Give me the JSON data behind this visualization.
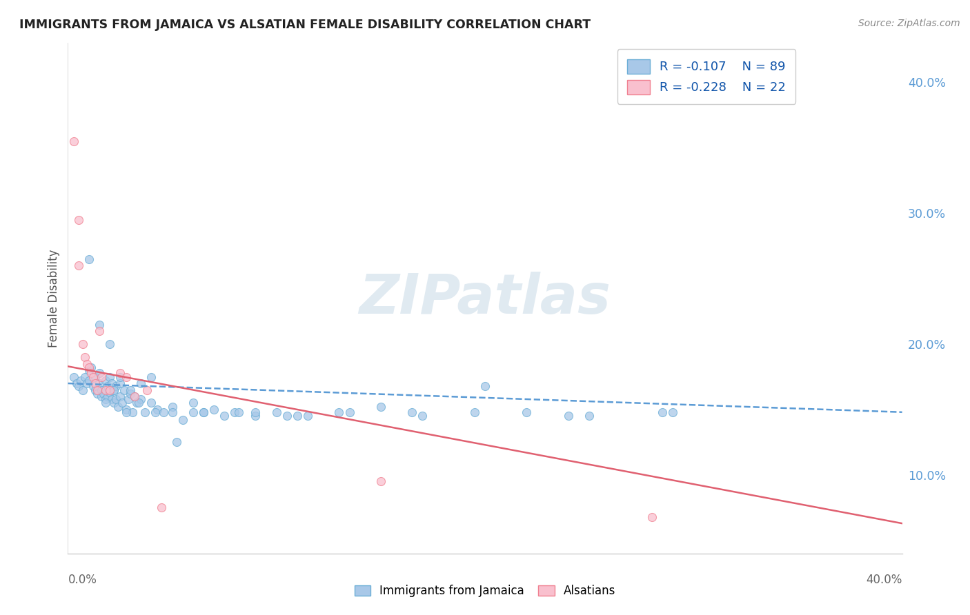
{
  "title": "IMMIGRANTS FROM JAMAICA VS ALSATIAN FEMALE DISABILITY CORRELATION CHART",
  "source": "Source: ZipAtlas.com",
  "ylabel": "Female Disability",
  "watermark": "ZIPatlas",
  "xlim": [
    0.0,
    0.4
  ],
  "ylim": [
    0.04,
    0.43
  ],
  "ytick_vals": [
    0.1,
    0.2,
    0.3,
    0.4
  ],
  "ytick_labels": [
    "10.0%",
    "20.0%",
    "30.0%",
    "40.0%"
  ],
  "xtick_labels": [
    "0.0%",
    "40.0%"
  ],
  "blue_R": -0.107,
  "blue_N": 89,
  "pink_R": -0.228,
  "pink_N": 22,
  "legend_label_blue": "Immigrants from Jamaica",
  "legend_label_pink": "Alsatians",
  "blue_scatter_color": "#a8c8e8",
  "blue_edge_color": "#6baed6",
  "pink_scatter_color": "#f9c0ce",
  "pink_edge_color": "#f08090",
  "blue_line_color": "#5b9bd5",
  "pink_line_color": "#e06070",
  "background_color": "#ffffff",
  "grid_color": "#d0dde8",
  "watermark_color": "#ccdce8",
  "title_color": "#222222",
  "source_color": "#888888",
  "ylabel_color": "#555555",
  "tick_label_color": "#5b9bd5",
  "legend_text_color_R": "#cc2244",
  "legend_text_color_N": "#1155aa",
  "blue_scatter_x": [
    0.003,
    0.004,
    0.005,
    0.006,
    0.007,
    0.008,
    0.009,
    0.01,
    0.01,
    0.011,
    0.012,
    0.013,
    0.013,
    0.014,
    0.015,
    0.015,
    0.016,
    0.016,
    0.017,
    0.018,
    0.018,
    0.019,
    0.019,
    0.02,
    0.02,
    0.021,
    0.021,
    0.022,
    0.022,
    0.023,
    0.023,
    0.024,
    0.025,
    0.025,
    0.026,
    0.027,
    0.028,
    0.029,
    0.03,
    0.031,
    0.032,
    0.033,
    0.035,
    0.037,
    0.04,
    0.043,
    0.046,
    0.05,
    0.055,
    0.06,
    0.065,
    0.07,
    0.08,
    0.09,
    0.1,
    0.115,
    0.13,
    0.15,
    0.17,
    0.195,
    0.22,
    0.25,
    0.285,
    0.01,
    0.015,
    0.02,
    0.025,
    0.03,
    0.035,
    0.04,
    0.05,
    0.06,
    0.075,
    0.09,
    0.11,
    0.135,
    0.165,
    0.2,
    0.24,
    0.29,
    0.018,
    0.022,
    0.028,
    0.034,
    0.042,
    0.052,
    0.065,
    0.082,
    0.105
  ],
  "blue_scatter_y": [
    0.175,
    0.17,
    0.168,
    0.172,
    0.165,
    0.175,
    0.17,
    0.172,
    0.18,
    0.182,
    0.168,
    0.165,
    0.175,
    0.162,
    0.17,
    0.178,
    0.165,
    0.16,
    0.162,
    0.158,
    0.172,
    0.168,
    0.16,
    0.163,
    0.175,
    0.158,
    0.17,
    0.155,
    0.165,
    0.158,
    0.168,
    0.152,
    0.16,
    0.17,
    0.155,
    0.165,
    0.15,
    0.158,
    0.162,
    0.148,
    0.16,
    0.155,
    0.158,
    0.148,
    0.155,
    0.15,
    0.148,
    0.152,
    0.142,
    0.155,
    0.148,
    0.15,
    0.148,
    0.145,
    0.148,
    0.145,
    0.148,
    0.152,
    0.145,
    0.148,
    0.148,
    0.145,
    0.148,
    0.265,
    0.215,
    0.2,
    0.175,
    0.165,
    0.17,
    0.175,
    0.148,
    0.148,
    0.145,
    0.148,
    0.145,
    0.148,
    0.148,
    0.168,
    0.145,
    0.148,
    0.155,
    0.165,
    0.148,
    0.155,
    0.148,
    0.125,
    0.148,
    0.148,
    0.145
  ],
  "pink_scatter_x": [
    0.003,
    0.005,
    0.005,
    0.007,
    0.008,
    0.009,
    0.01,
    0.011,
    0.012,
    0.013,
    0.014,
    0.015,
    0.016,
    0.018,
    0.02,
    0.025,
    0.028,
    0.032,
    0.038,
    0.045,
    0.15,
    0.28
  ],
  "pink_scatter_y": [
    0.355,
    0.295,
    0.26,
    0.2,
    0.19,
    0.185,
    0.182,
    0.178,
    0.175,
    0.17,
    0.165,
    0.21,
    0.175,
    0.165,
    0.165,
    0.178,
    0.175,
    0.16,
    0.165,
    0.075,
    0.095,
    0.068
  ],
  "blue_trend_x0": 0.0,
  "blue_trend_x1": 0.4,
  "blue_trend_y0": 0.17,
  "blue_trend_y1": 0.148,
  "pink_trend_x0": 0.0,
  "pink_trend_x1": 0.4,
  "pink_trend_y0": 0.183,
  "pink_trend_y1": 0.063
}
